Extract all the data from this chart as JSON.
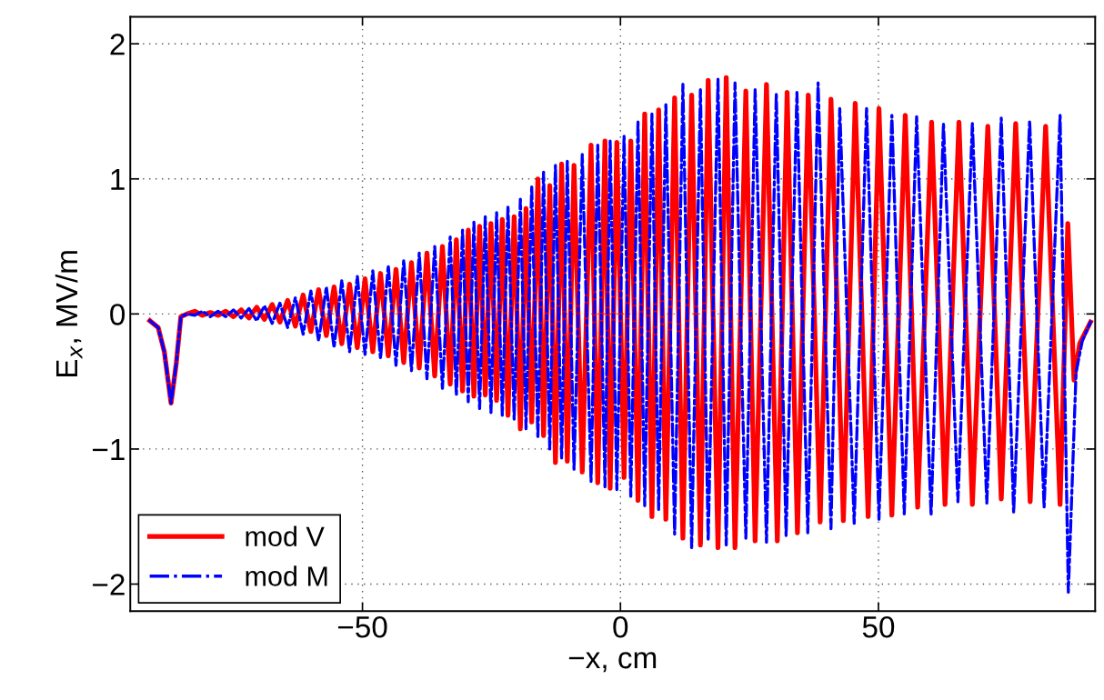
{
  "chart_data": {
    "type": "line",
    "xlabel": "−x, cm",
    "ylabel": "E$_{x}$, MV/m",
    "xlim": [
      -95,
      92
    ],
    "ylim": [
      -2.2,
      2.2
    ],
    "xticks": [
      -50,
      0,
      50
    ],
    "yticks": [
      -2,
      -1,
      0,
      1,
      2
    ],
    "grid": true,
    "legend": "bottom left",
    "marker": "none",
    "series": [
      {
        "name": "mod V",
        "color": "#ff0000",
        "line_style": "solid",
        "x": [
          -91.2,
          -89.6,
          -88.4,
          -87.1,
          -86.1,
          -85.2,
          -84.0,
          -82.5,
          -81.0,
          -79.5,
          -78.0,
          -76.5,
          -75.0,
          -73.5,
          -72.0,
          -70.5,
          -69.0,
          -67.5,
          -66.0,
          -64.5,
          -63.0,
          -61.5,
          -60.0,
          -58.5,
          -57.0,
          -55.5,
          -54.0,
          -52.5,
          -51.0,
          -49.5,
          -48.0,
          -46.5,
          -45.0,
          -43.5,
          -42.0,
          -40.5,
          -39.0,
          -37.5,
          -36.0,
          -34.5,
          -33.0,
          -31.8,
          -30.6,
          -29.5,
          -28.4,
          -27.3,
          -26.2,
          -25.1,
          -24.0,
          -22.9,
          -21.8,
          -20.6,
          -19.4,
          -18.3,
          -17.2,
          -16.0,
          -14.9,
          -13.7,
          -12.6,
          -11.4,
          -10.3,
          -9.0,
          -7.4,
          -5.7,
          -4.4,
          -3.0,
          -2.0,
          -0.7,
          0.7,
          2.0,
          3.4,
          4.7,
          6.1,
          7.4,
          8.8,
          10.5,
          12.1,
          13.8,
          15.5,
          17.0,
          18.9,
          20.5,
          22.2,
          24.3,
          26.1,
          28.3,
          30.4,
          32.3,
          34.3,
          36.4,
          38.7,
          40.8,
          43.2,
          45.5,
          48.0,
          50.1,
          52.6,
          55.2,
          57.6,
          60.3,
          62.9,
          65.6,
          68.2,
          71.2,
          73.8,
          76.6,
          79.4,
          82.4,
          85.2,
          86.7,
          87.9,
          89.0,
          91.1
        ],
        "values": [
          -0.05,
          -0.1,
          -0.28,
          -0.66,
          -0.37,
          -0.02,
          0.0,
          0.02,
          -0.01,
          0.01,
          -0.01,
          0.02,
          -0.02,
          0.03,
          -0.03,
          0.05,
          -0.04,
          0.07,
          -0.06,
          0.1,
          -0.09,
          0.14,
          -0.13,
          0.18,
          -0.16,
          0.2,
          -0.22,
          0.22,
          -0.25,
          0.26,
          -0.28,
          0.3,
          -0.31,
          0.33,
          -0.36,
          0.38,
          -0.4,
          0.45,
          -0.46,
          0.5,
          -0.52,
          0.55,
          -0.57,
          0.62,
          -0.61,
          0.65,
          -0.6,
          0.67,
          -0.64,
          0.7,
          -0.75,
          0.72,
          -0.85,
          0.78,
          -0.8,
          1.0,
          -0.9,
          0.95,
          -1.1,
          1.11,
          -1.09,
          1.1,
          -1.17,
          1.25,
          -1.25,
          1.28,
          -1.29,
          1.27,
          -1.21,
          1.28,
          -1.38,
          1.48,
          -1.5,
          1.51,
          -1.52,
          1.6,
          -1.66,
          1.62,
          -1.71,
          1.73,
          -1.73,
          1.75,
          -1.73,
          1.65,
          -1.68,
          1.7,
          -1.68,
          1.64,
          -1.62,
          1.62,
          -1.54,
          1.59,
          -1.53,
          1.56,
          -1.5,
          1.52,
          -1.49,
          1.47,
          -1.43,
          1.42,
          -1.41,
          1.42,
          -1.41,
          1.39,
          -1.37,
          1.41,
          -1.39,
          1.39,
          -1.41,
          0.67,
          -0.49,
          -0.22,
          -0.06
        ]
      },
      {
        "name": "mod M",
        "color": "#0000ff",
        "line_style": "dashdot",
        "x": [
          -91.2,
          -89.6,
          -88.4,
          -87.1,
          -86.1,
          -85.2,
          -84.0,
          -82.5,
          -81.0,
          -79.5,
          -78.0,
          -76.5,
          -75.0,
          -73.5,
          -72.0,
          -70.5,
          -69.0,
          -67.5,
          -66.0,
          -64.5,
          -63.0,
          -61.5,
          -60.0,
          -58.5,
          -57.0,
          -55.5,
          -54.0,
          -52.5,
          -51.0,
          -49.5,
          -48.0,
          -46.5,
          -45.0,
          -43.5,
          -42.0,
          -40.5,
          -39.0,
          -37.5,
          -36.0,
          -34.5,
          -33.0,
          -31.8,
          -30.6,
          -29.5,
          -28.4,
          -27.3,
          -26.2,
          -25.1,
          -24.0,
          -22.9,
          -21.8,
          -20.6,
          -19.4,
          -18.3,
          -17.2,
          -16.0,
          -14.9,
          -13.7,
          -12.6,
          -11.4,
          -10.3,
          -9.0,
          -7.4,
          -5.7,
          -4.4,
          -3.0,
          -2.0,
          -0.7,
          0.7,
          2.0,
          3.4,
          4.7,
          6.1,
          7.4,
          8.8,
          10.5,
          12.1,
          13.8,
          15.5,
          17.0,
          18.9,
          20.5,
          22.2,
          24.3,
          26.1,
          28.3,
          30.2,
          32.1,
          34.2,
          36.3,
          38.3,
          40.8,
          42.5,
          45.3,
          47.7,
          50.1,
          52.6,
          55.0,
          57.4,
          60.2,
          62.6,
          65.4,
          68.2,
          71.0,
          73.8,
          76.2,
          79.3,
          82.1,
          85.2,
          86.8,
          88.3,
          89.5,
          91.1
        ],
        "values": [
          -0.05,
          -0.1,
          -0.28,
          -0.66,
          -0.37,
          -0.02,
          0.0,
          -0.01,
          0.02,
          -0.02,
          0.02,
          -0.02,
          0.03,
          -0.03,
          0.04,
          -0.05,
          0.06,
          -0.07,
          0.08,
          -0.1,
          0.12,
          -0.15,
          0.17,
          -0.2,
          0.2,
          -0.25,
          0.25,
          -0.28,
          0.28,
          -0.3,
          0.32,
          -0.33,
          0.36,
          -0.38,
          0.4,
          -0.42,
          0.45,
          -0.48,
          0.5,
          -0.55,
          0.57,
          -0.6,
          0.62,
          -0.65,
          0.68,
          -0.7,
          0.72,
          -0.73,
          0.75,
          -0.75,
          0.8,
          -0.78,
          0.85,
          -0.85,
          0.95,
          -0.92,
          1.05,
          -1.0,
          1.1,
          -1.07,
          1.13,
          -1.15,
          1.18,
          -1.24,
          1.25,
          -1.28,
          1.28,
          -1.3,
          1.32,
          -1.35,
          1.43,
          -1.42,
          1.48,
          -1.45,
          1.55,
          -1.63,
          1.7,
          -1.73,
          1.66,
          -1.68,
          1.74,
          -1.71,
          1.71,
          -1.66,
          1.66,
          -1.69,
          1.63,
          -1.64,
          1.64,
          -1.62,
          1.71,
          -1.59,
          1.52,
          -1.55,
          1.52,
          -1.52,
          1.47,
          -1.48,
          1.46,
          -1.49,
          1.41,
          -1.39,
          1.41,
          -1.4,
          1.45,
          -1.47,
          1.43,
          -1.43,
          1.47,
          -2.06,
          -0.43,
          -0.2,
          -0.06
        ]
      }
    ]
  }
}
